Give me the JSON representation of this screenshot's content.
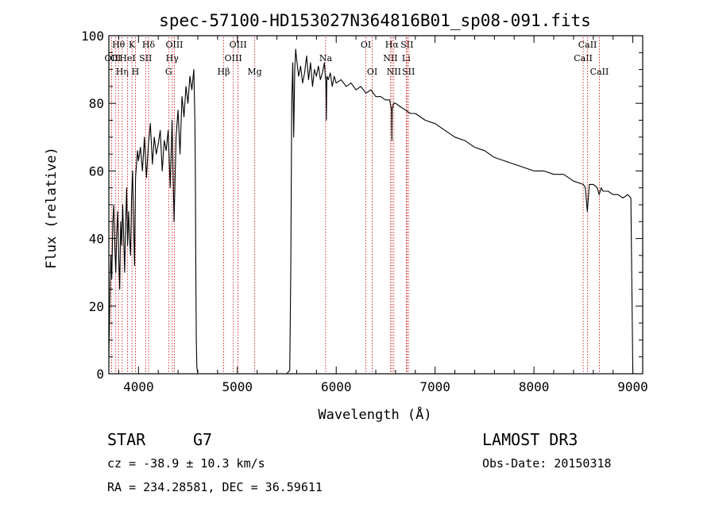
{
  "chart_data": {
    "type": "line",
    "title": "spec-57100-HD153027N364816B01_sp08-091.fits",
    "xlabel": "Wavelength (Å)",
    "ylabel": "Flux (relative)",
    "xlim": [
      3700,
      9100
    ],
    "ylim": [
      0,
      100
    ],
    "xticks": [
      4000,
      5000,
      6000,
      7000,
      8000,
      9000
    ],
    "yticks": [
      0,
      20,
      40,
      60,
      80,
      100
    ],
    "x_tick_labels": [
      "4000",
      "5000",
      "6000",
      "7000",
      "8000",
      "9000"
    ],
    "y_tick_labels": [
      "0",
      "20",
      "40",
      "60",
      "80",
      "100"
    ],
    "line_color": "#000000",
    "marker_color": "#cc0000",
    "series": [
      {
        "name": "flux",
        "x": [
          3700,
          3710,
          3720,
          3730,
          3740,
          3750,
          3760,
          3770,
          3780,
          3790,
          3800,
          3810,
          3820,
          3830,
          3840,
          3850,
          3860,
          3870,
          3880,
          3890,
          3900,
          3910,
          3920,
          3930,
          3940,
          3950,
          3960,
          3970,
          3980,
          3990,
          4000,
          4020,
          4040,
          4060,
          4080,
          4100,
          4120,
          4140,
          4160,
          4180,
          4200,
          4220,
          4240,
          4260,
          4280,
          4300,
          4320,
          4340,
          4360,
          4380,
          4400,
          4420,
          4440,
          4460,
          4480,
          4500,
          4520,
          4540,
          4560,
          4570,
          4575,
          4580,
          4585,
          4590,
          4600,
          5000,
          5500,
          5530,
          5540,
          5550,
          5560,
          5570,
          5580,
          5590,
          5600,
          5620,
          5640,
          5660,
          5680,
          5700,
          5720,
          5740,
          5760,
          5780,
          5800,
          5820,
          5840,
          5860,
          5880,
          5895,
          5900,
          5905,
          5920,
          5940,
          5960,
          5980,
          6000,
          6050,
          6100,
          6150,
          6200,
          6250,
          6300,
          6350,
          6400,
          6450,
          6500,
          6540,
          6560,
          6563,
          6566,
          6580,
          6600,
          6650,
          6700,
          6750,
          6800,
          6900,
          7000,
          7100,
          7200,
          7300,
          7400,
          7500,
          7600,
          7700,
          7800,
          7900,
          8000,
          8100,
          8200,
          8300,
          8400,
          8500,
          8520,
          8540,
          8560,
          8600,
          8640,
          8660,
          8680,
          8700,
          8750,
          8800,
          8850,
          8900,
          8950,
          8980,
          9000
        ],
        "y": [
          5,
          20,
          35,
          28,
          45,
          50,
          38,
          30,
          42,
          48,
          35,
          25,
          45,
          38,
          50,
          40,
          30,
          45,
          55,
          38,
          48,
          40,
          35,
          52,
          60,
          45,
          32,
          58,
          62,
          66,
          63,
          67,
          60,
          70,
          58,
          68,
          74,
          62,
          70,
          65,
          68,
          72,
          60,
          69,
          66,
          72,
          55,
          75,
          45,
          70,
          78,
          65,
          82,
          76,
          85,
          80,
          88,
          84,
          90,
          75,
          60,
          30,
          10,
          2,
          0,
          0,
          0,
          1,
          30,
          80,
          92,
          70,
          90,
          96,
          93,
          88,
          91,
          86,
          89,
          94,
          87,
          92,
          85,
          90,
          88,
          91,
          87,
          89,
          92,
          86,
          75,
          88,
          87,
          89,
          85,
          88,
          86,
          87,
          85,
          86,
          84,
          85,
          83,
          84,
          82,
          82,
          81,
          81,
          78,
          69,
          78,
          80,
          80,
          79,
          78,
          77,
          77,
          75,
          74,
          72,
          70,
          69,
          67,
          66,
          64,
          63,
          62,
          61,
          60,
          60,
          59,
          59,
          57,
          56,
          55,
          48,
          56,
          56,
          55,
          53,
          55,
          54,
          54,
          53,
          53,
          52,
          53,
          52,
          0
        ]
      }
    ],
    "spectral_lines": [
      {
        "label": "OΙΙ",
        "x": 3727,
        "row": 2
      },
      {
        "label": "Hθ",
        "x": 3798,
        "row": 1
      },
      {
        "label": "OΙ",
        "x": 3770,
        "row": 2
      },
      {
        "label": "Hη",
        "x": 3835,
        "row": 3
      },
      {
        "label": "HeI",
        "x": 3889,
        "row": 2
      },
      {
        "label": "K",
        "x": 3934,
        "row": 1
      },
      {
        "label": "H",
        "x": 3969,
        "row": 3
      },
      {
        "label": "SII",
        "x": 4072,
        "row": 2
      },
      {
        "label": "Hδ",
        "x": 4102,
        "row": 1
      },
      {
        "label": "G",
        "x": 4305,
        "row": 3
      },
      {
        "label": "Hγ",
        "x": 4341,
        "row": 2
      },
      {
        "label": "OIII",
        "x": 4363,
        "row": 1
      },
      {
        "label": "Hβ",
        "x": 4861,
        "row": 3
      },
      {
        "label": "OIII",
        "x": 4959,
        "row": 2
      },
      {
        "label": "OIII",
        "x": 5007,
        "row": 1
      },
      {
        "label": "Mg",
        "x": 5175,
        "row": 3
      },
      {
        "label": "Na",
        "x": 5893,
        "row": 2
      },
      {
        "label": "OI",
        "x": 6300,
        "row": 1
      },
      {
        "label": "OI",
        "x": 6364,
        "row": 3
      },
      {
        "label": "NII",
        "x": 6548,
        "row": 2
      },
      {
        "label": "Hα",
        "x": 6563,
        "row": 1
      },
      {
        "label": "NII",
        "x": 6583,
        "row": 3
      },
      {
        "label": "Li",
        "x": 6708,
        "row": 2
      },
      {
        "label": "SII",
        "x": 6716,
        "row": 1
      },
      {
        "label": "SII",
        "x": 6731,
        "row": 3
      },
      {
        "label": "CaII",
        "x": 8498,
        "row": 2
      },
      {
        "label": "CaII",
        "x": 8542,
        "row": 1
      },
      {
        "label": "CaII",
        "x": 8662,
        "row": 3
      }
    ]
  },
  "info": {
    "class": "STAR",
    "subclass": "G7",
    "survey": "LAMOST DR3",
    "cz": "cz = -38.9 ± 10.3 km/s",
    "obs_date": "Obs-Date: 20150318",
    "coords": "RA = 234.28581, DEC =  36.59611"
  }
}
